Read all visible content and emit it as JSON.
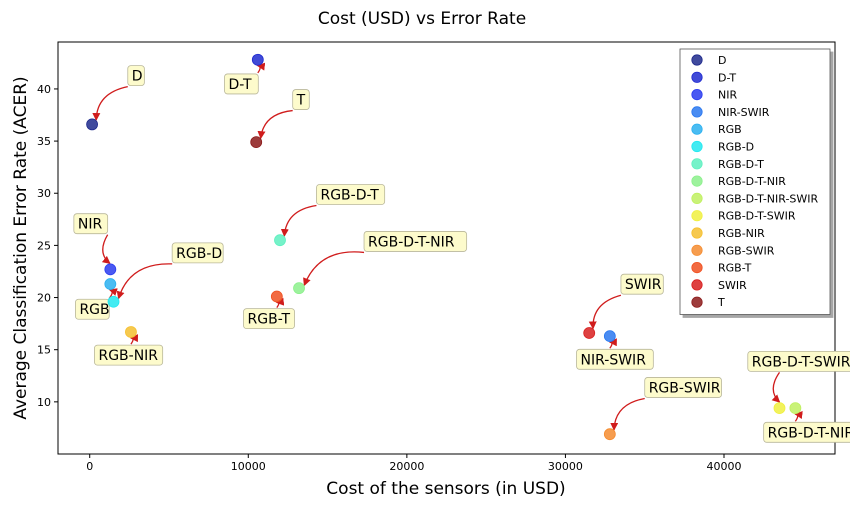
{
  "chart_data": {
    "type": "scatter",
    "title": "Cost (USD) vs Error Rate",
    "xlabel": "Cost of the sensors (in USD)",
    "ylabel": "Average Classification Error Rate (ACER)",
    "xlim": [
      -2000,
      47000
    ],
    "ylim": [
      5.0,
      44.5
    ],
    "xticks": [
      0,
      10000,
      20000,
      30000,
      40000
    ],
    "yticks": [
      10,
      15,
      20,
      25,
      30,
      35,
      40
    ],
    "grid": false,
    "legend_position": "top-right",
    "points": [
      {
        "name": "D",
        "x": 150,
        "y": 36.6,
        "color": "#1f2a8c"
      },
      {
        "name": "D-T",
        "x": 10600,
        "y": 42.8,
        "color": "#1f2ad0"
      },
      {
        "name": "NIR",
        "x": 1300,
        "y": 22.7,
        "color": "#2a3cf0"
      },
      {
        "name": "NIR-SWIR",
        "x": 32800,
        "y": 16.3,
        "color": "#2a78f0"
      },
      {
        "name": "RGB",
        "x": 1300,
        "y": 21.3,
        "color": "#2ab0f0"
      },
      {
        "name": "RGB-D",
        "x": 1500,
        "y": 19.6,
        "color": "#22e8f0"
      },
      {
        "name": "RGB-D-T",
        "x": 12000,
        "y": 25.5,
        "color": "#5ef0c0"
      },
      {
        "name": "RGB-D-T-NIR",
        "x": 13200,
        "y": 20.9,
        "color": "#8cf08c"
      },
      {
        "name": "RGB-D-T-NIR-SWIR",
        "x": 44500,
        "y": 9.4,
        "color": "#c0f060"
      },
      {
        "name": "RGB-D-T-SWIR",
        "x": 43500,
        "y": 9.4,
        "color": "#f0f040"
      },
      {
        "name": "RGB-NIR",
        "x": 2600,
        "y": 16.7,
        "color": "#f5c030"
      },
      {
        "name": "RGB-SWIR",
        "x": 32800,
        "y": 6.9,
        "color": "#f58c30"
      },
      {
        "name": "RGB-T",
        "x": 11800,
        "y": 20.1,
        "color": "#f05020"
      },
      {
        "name": "SWIR",
        "x": 31500,
        "y": 16.6,
        "color": "#d82020"
      },
      {
        "name": "T",
        "x": 10500,
        "y": 34.9,
        "color": "#8c1a1a"
      }
    ],
    "annotations": [
      {
        "text": "D",
        "target": "D",
        "label_x": 2400,
        "label_y": 40.8
      },
      {
        "text": "D-T",
        "target": "D-T",
        "label_x": 8500,
        "label_y": 40.0
      },
      {
        "text": "T",
        "target": "T",
        "label_x": 12800,
        "label_y": 38.5
      },
      {
        "text": "NIR",
        "target": "NIR",
        "label_x": -1000,
        "label_y": 26.6
      },
      {
        "text": "RGB-D",
        "target": "RGB-D",
        "label_x": 5200,
        "label_y": 23.8
      },
      {
        "text": "RGB",
        "target": "RGB",
        "label_x": -900,
        "label_y": 18.4
      },
      {
        "text": "RGB-NIR",
        "target": "RGB-NIR",
        "label_x": 300,
        "label_y": 14.0
      },
      {
        "text": "RGB-D-T",
        "target": "RGB-D-T",
        "label_x": 14300,
        "label_y": 29.4
      },
      {
        "text": "RGB-D-T-NIR",
        "target": "RGB-D-T-NIR",
        "label_x": 17300,
        "label_y": 24.9
      },
      {
        "text": "RGB-T",
        "target": "RGB-T",
        "label_x": 9700,
        "label_y": 17.5
      },
      {
        "text": "SWIR",
        "target": "SWIR",
        "label_x": 33500,
        "label_y": 20.8
      },
      {
        "text": "NIR-SWIR",
        "target": "NIR-SWIR",
        "label_x": 30700,
        "label_y": 13.6
      },
      {
        "text": "RGB-SWIR",
        "target": "RGB-SWIR",
        "label_x": 35000,
        "label_y": 10.9
      },
      {
        "text": "RGB-D-T-SWIR",
        "target": "RGB-D-T-SWIR",
        "label_x": 41500,
        "label_y": 13.4
      },
      {
        "text": "RGB-D-T-NIR-SWIR",
        "target": "RGB-D-T-NIR-SWIR",
        "label_x": 42500,
        "label_y": 6.6
      }
    ]
  }
}
